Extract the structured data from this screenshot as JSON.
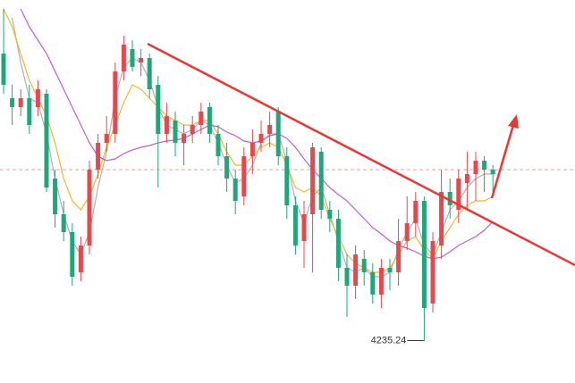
{
  "chart_data": {
    "type": "candlestick",
    "ylim": [
      4211.5,
      4426
    ],
    "up_color": "#e5484d",
    "down_color": "#1fa67a",
    "open": [
      4396,
      4371,
      4366,
      4371,
      4366,
      4373.5,
      4326,
      4306,
      4296,
      4273.5,
      4288.5,
      4331,
      4346,
      4351,
      4386,
      4398.5,
      4391,
      4393.5,
      4378.5,
      4351,
      4358.5,
      4346,
      4351,
      4356,
      4366,
      4351,
      4338.5,
      4326,
      4316,
      4338.5,
      4346,
      4351,
      4363.5,
      4338.5,
      4311,
      4291,
      4306,
      4341,
      4308.5,
      4303.5,
      4276,
      4266,
      4281,
      4273.5,
      4261,
      4276,
      4273.5,
      4291,
      4301,
      4313.5,
      4256,
      4288.5,
      4318.5,
      4308.5,
      4323.5,
      4328.5,
      4336,
      4331
    ],
    "high": [
      4421,
      4378.5,
      4376,
      4378.5,
      4381,
      4376,
      4331,
      4313.5,
      4301,
      4293.5,
      4336,
      4351,
      4361,
      4391,
      4406,
      4403.5,
      4398.5,
      4396,
      4383.5,
      4368.5,
      4363.5,
      4356,
      4361,
      4368.5,
      4368.5,
      4356,
      4346,
      4331,
      4343.5,
      4353.5,
      4358.5,
      4363.5,
      4366,
      4343.5,
      4316,
      4313.5,
      4346,
      4343.5,
      4313.5,
      4308.5,
      4283.5,
      4288.5,
      4286,
      4278.5,
      4281,
      4281,
      4303.5,
      4316,
      4318.5,
      4316,
      4296,
      4331,
      4326,
      4331,
      4341,
      4341,
      4338.5,
      4333.5
    ],
    "low": [
      4373.5,
      4356,
      4361,
      4351,
      4361,
      4318.5,
      4298.5,
      4291,
      4266,
      4268.5,
      4283.5,
      4326,
      4341,
      4346,
      4381,
      4386,
      4383.5,
      4371,
      4321,
      4346,
      4338.5,
      4333.5,
      4346,
      4351,
      4346,
      4333.5,
      4318.5,
      4306,
      4311,
      4328.5,
      4341,
      4343.5,
      4333.5,
      4303.5,
      4283.5,
      4276,
      4273.5,
      4303.5,
      4296,
      4268.5,
      4248.5,
      4258.5,
      4266,
      4256,
      4253.5,
      4263.5,
      4266,
      4286,
      4293.5,
      4235.24,
      4251,
      4281,
      4303.5,
      4301,
      4308.5,
      4313.5,
      4318.5,
      4316
    ],
    "close": [
      4378.5,
      4366,
      4371,
      4356,
      4376,
      4321,
      4306,
      4296,
      4271,
      4288.5,
      4331,
      4346,
      4351,
      4386,
      4401,
      4388.5,
      4393.5,
      4376,
      4351,
      4361,
      4346,
      4351,
      4356,
      4363.5,
      4351,
      4338.5,
      4326,
      4313.5,
      4338.5,
      4346,
      4351,
      4356,
      4338.5,
      4311,
      4288.5,
      4306,
      4343.5,
      4308.5,
      4303.5,
      4276,
      4266,
      4283.5,
      4273.5,
      4261,
      4276,
      4273.5,
      4291,
      4301,
      4313.5,
      4253.5,
      4291,
      4318.5,
      4311,
      4326,
      4328.5,
      4336,
      4331,
      4328.5
    ],
    "lines": [
      {
        "color": "#b0b0b0",
        "values": [
          null,
          4416,
          4391,
          4371,
          4368.5,
          4351,
          4326,
          4306,
          4291,
          4283.5,
          4296,
          4321,
          4341,
          4371,
          4388.5,
          4393.5,
          4391,
          4381,
          4366,
          4356,
          4353.5,
          4351,
          4353.5,
          4358.5,
          4356,
          4346,
          4333.5,
          4323.5,
          4326,
          4333.5,
          4346,
          4351,
          4351,
          4336,
          4313.5,
          4301,
          4316,
          4321,
          4306,
          4291,
          4276,
          4273.5,
          4276,
          4271,
          4271,
          4273.5,
          4286,
          4296,
          4303.5,
          4288.5,
          4283.5,
          4296,
          4308.5,
          4313.5,
          4321,
          4326,
          4328.5,
          4328.5
        ]
      },
      {
        "color": "#f2b731",
        "values": [
          4421,
          4411,
          4396,
          4381,
          4371,
          4361,
          4346,
          4326,
          4313.5,
          4308.5,
          4316,
          4328.5,
          4343.5,
          4356,
          4368.5,
          4378.5,
          4376,
          4371,
          4366,
          4361,
          4358.5,
          4356,
          4356,
          4358.5,
          4358.5,
          4351,
          4341,
          4333.5,
          4333.5,
          4338.5,
          4343.5,
          4346,
          4343.5,
          4333.5,
          4321,
          4318.5,
          4321,
          4316,
          4303.5,
          4293.5,
          4283.5,
          4278.5,
          4276,
          4273.5,
          4273.5,
          4276,
          4283.5,
          4291,
          4293.5,
          4286,
          4281,
          4291,
          4298.5,
          4306,
          4311,
          4313.5,
          4313.5,
          4316
        ]
      },
      {
        "color": "#c45ad6",
        "values": [
          null,
          null,
          4421,
          4411,
          4403.5,
          4396,
          4386,
          4376,
          4366,
          4356,
          4346,
          4338.5,
          4336,
          4337,
          4340,
          4342,
          4343.5,
          4344.5,
          4346,
          4347,
          4347.5,
          4348.5,
          4351,
          4353.5,
          4356,
          4355,
          4352,
          4350,
          4347,
          4346,
          4347,
          4350,
          4351,
          4348.5,
          4343.5,
          4337,
          4331,
          4326,
          4321,
          4317,
          4313.5,
          4308.5,
          4303.5,
          4298.5,
          4295,
          4291,
          4288.5,
          4287,
          4285,
          4282.5,
          4281,
          4282,
          4285,
          4288.5,
          4291,
          4293.5,
          4297,
          4302
        ]
      }
    ]
  }
}
